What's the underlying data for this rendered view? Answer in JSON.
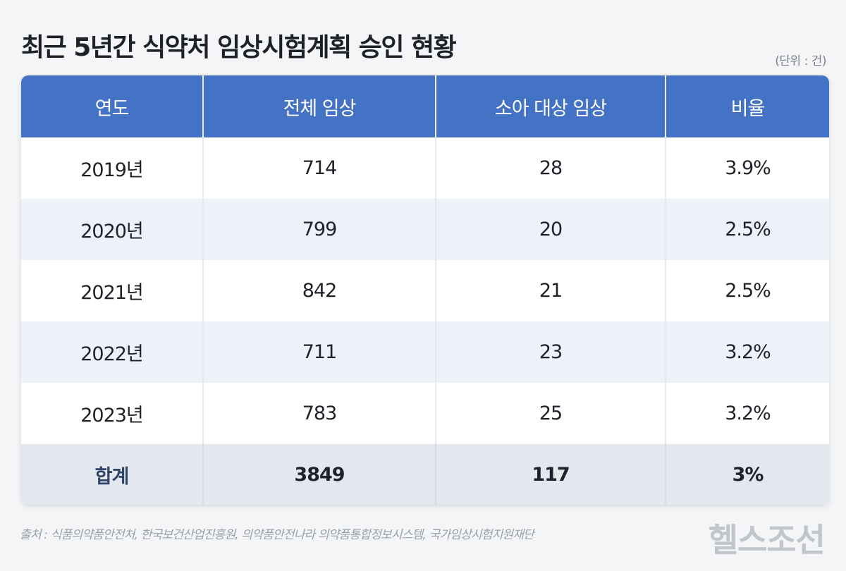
{
  "title": "최근 5년간 식약처 임상시험계획 승인 현황",
  "unit": "(단위 : 건)",
  "table": {
    "headers": [
      "연도",
      "전체 임상",
      "소아 대상 임상",
      "비율"
    ],
    "rows": [
      [
        "2019년",
        "714",
        "28",
        "3.9%"
      ],
      [
        "2020년",
        "799",
        "20",
        "2.5%"
      ],
      [
        "2021년",
        "842",
        "21",
        "2.5%"
      ],
      [
        "2022년",
        "711",
        "23",
        "3.2%"
      ],
      [
        "2023년",
        "783",
        "25",
        "3.2%"
      ]
    ],
    "total": [
      "합계",
      "3849",
      "117",
      "3%"
    ]
  },
  "source": "출처 : 식품의약품안전처, 한국보건산업진흥원, 의약품안전나라 의약품통합정보시스템, 국가임상시험지원재단",
  "logo": "헬스조선",
  "colors": {
    "header_bg": "#4472c4",
    "row_alt_bg": "#edf2f8",
    "total_bg": "#e3e8ee",
    "total_label": "#2f4468"
  }
}
